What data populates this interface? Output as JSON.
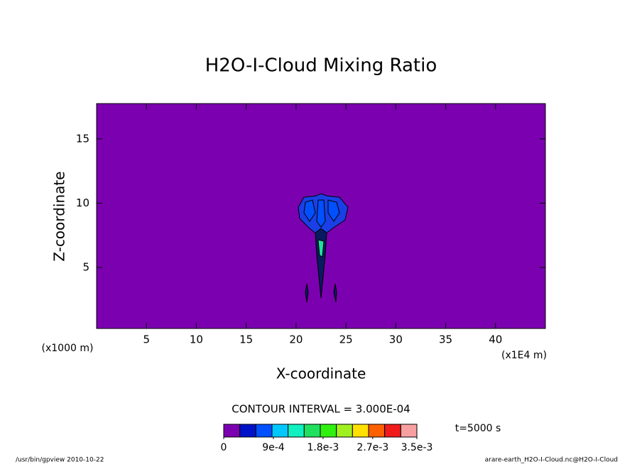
{
  "chart_data": {
    "type": "contour",
    "title": "H2O-I-Cloud Mixing Ratio",
    "xlabel": "X-coordinate",
    "ylabel": "Z-coordinate",
    "x_unit_label": "(x1000 m)",
    "x_unit_label_right": "(x1E4 m)",
    "xlim": [
      0,
      45
    ],
    "ylim": [
      0.25,
      17.75
    ],
    "xticks": [
      5,
      10,
      15,
      20,
      25,
      30,
      35,
      40
    ],
    "yticks": [
      5,
      10,
      15
    ],
    "background_color": "#7b00b0",
    "contour_interval_text": "CONTOUR INTERVAL = 3.000E-04",
    "time_label": "t=5000 s",
    "colorbar": {
      "colors": [
        "#7b00b0",
        "#0012c8",
        "#0050ff",
        "#00c8ff",
        "#10f0c0",
        "#20e060",
        "#30f010",
        "#a0f020",
        "#ffe000",
        "#ff6000",
        "#f01c1c",
        "#f8a0a0"
      ],
      "lim": [
        0,
        0.0035
      ],
      "ticks": [
        {
          "value": 0,
          "label": "0"
        },
        {
          "value": 0.0009,
          "label": "9e-4"
        },
        {
          "value": 0.0018,
          "label": "1.8e-3"
        },
        {
          "value": 0.0027,
          "label": "2.7e-3"
        },
        {
          "value": 0.0035,
          "label": "3.5e-3"
        }
      ]
    },
    "footer_left": "/usr/bin/gpview  2010-10-22",
    "footer_right": "arare-earth_H2O-I-Cloud.nc@H2O-I-Cloud"
  }
}
